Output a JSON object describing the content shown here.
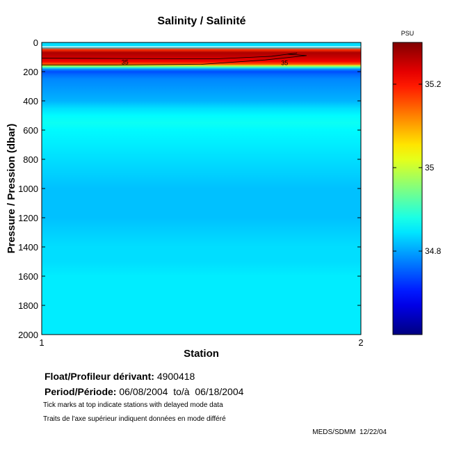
{
  "chart_data": {
    "type": "heatmap",
    "title": "Salinity / Salinité",
    "xlabel": "Station",
    "ylabel": "Pressure / Pression (dbar)",
    "x_ticks": [
      1,
      2
    ],
    "xlim": [
      1,
      2
    ],
    "y_ticks": [
      0,
      200,
      400,
      600,
      800,
      1000,
      1200,
      1400,
      1600,
      1800,
      2000
    ],
    "ylim": [
      0,
      2000
    ],
    "y_reversed": true,
    "colorbar": {
      "unit": "PSU",
      "range": [
        34.6,
        35.3
      ],
      "ticks": [
        34.8,
        35,
        35.2
      ],
      "colormap": "jet"
    },
    "profile": {
      "pressure_dbar": [
        0,
        30,
        50,
        70,
        100,
        130,
        150,
        160,
        170,
        185,
        200,
        220,
        250,
        300,
        350,
        400,
        450,
        500,
        550,
        600,
        700,
        800,
        900,
        1000,
        1100,
        1200,
        1300,
        1400,
        1500,
        1600,
        1700,
        1800,
        1900,
        2000
      ],
      "salinity_psu": [
        34.84,
        34.84,
        35.18,
        35.27,
        35.25,
        35.22,
        35.15,
        35.0,
        34.9,
        34.78,
        34.74,
        34.76,
        34.78,
        34.79,
        34.8,
        34.81,
        34.84,
        34.86,
        34.87,
        34.86,
        34.85,
        34.84,
        34.83,
        34.82,
        34.82,
        34.82,
        34.83,
        34.84,
        34.84,
        34.85,
        34.85,
        34.85,
        34.85,
        34.85
      ]
    },
    "contour_labels": [
      {
        "value": "35",
        "x": 1.25,
        "pressure_dbar": 130
      },
      {
        "value": "35",
        "x": 1.75,
        "pressure_dbar": 135
      }
    ]
  },
  "info": {
    "float_label": "Float/Profileur dérivant:",
    "float_value": "4900418",
    "period_label": "Period/Période:",
    "period_value": "06/08/2004  to/à  06/18/2004",
    "note_en": "Tick marks at top indicate stations with delayed mode data",
    "note_fr": "Traits de l'axe supérieur indiquent données en mode différé",
    "credit": "MEDS/SDMM  12/22/04"
  }
}
